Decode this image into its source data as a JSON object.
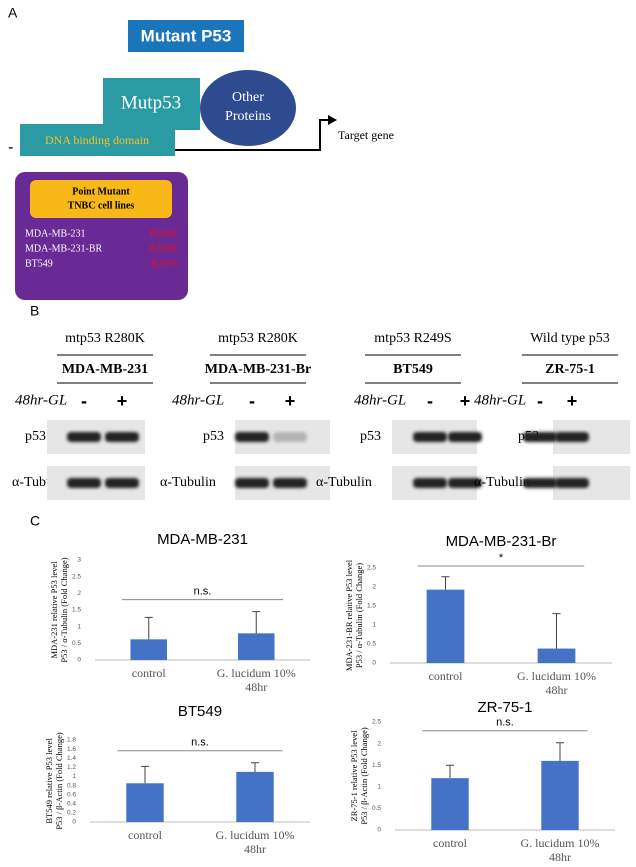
{
  "panel_a": {
    "label": "A",
    "title": "Mutant P53",
    "protein": "Mutp53",
    "domain": "DNA binding domain",
    "partner": [
      "Other",
      "Proteins"
    ],
    "target": "Target gene",
    "start": "-",
    "box_title": [
      "Point Mutant",
      "TNBC cell lines"
    ],
    "cell_lines": [
      {
        "name": "MDA-MB-231",
        "mutation": "R280K"
      },
      {
        "name": "MDA-MB-231-BR",
        "mutation": "R280K"
      },
      {
        "name": "BT549",
        "mutation": "R249S"
      }
    ]
  },
  "panel_b": {
    "label": "B",
    "treatment": "48hr-GL",
    "minus": "-",
    "plus": "+",
    "rows": [
      "p53",
      "α-Tubulin"
    ],
    "columns": [
      {
        "mutation": "mtp53 R280K",
        "cell_line": "MDA-MB-231"
      },
      {
        "mutation": "mtp53 R280K",
        "cell_line": "MDA-MB-231-Br"
      },
      {
        "mutation": "mtp53 R249S",
        "cell_line": "BT549"
      },
      {
        "mutation": "Wild type p53",
        "cell_line": "ZR-75-1"
      }
    ]
  },
  "panel_c": {
    "label": "C"
  },
  "chart_data": [
    {
      "type": "bar",
      "title": "MDA-MB-231",
      "ylabel": [
        "MDA-231 relative P53 level",
        "P53 / α-Tubulin (Fold Change)"
      ],
      "categories": [
        "control",
        "G. lucidum 10% 48hr"
      ],
      "values": [
        0.62,
        0.8
      ],
      "errors": [
        0.66,
        0.65
      ],
      "color": "#4472c4",
      "ylim": [
        0,
        3
      ],
      "yticks": [
        0,
        0.5,
        1,
        1.5,
        2,
        2.5,
        3
      ],
      "annotation": "n.s."
    },
    {
      "type": "bar",
      "title": "MDA-MB-231-Br",
      "ylabel": [
        "MDA-231-BR relative P53 level",
        "P53 / α-Tubulin (Fold Change)"
      ],
      "categories": [
        "control",
        "G. lucidum 10% 48hr"
      ],
      "values": [
        1.93,
        0.38
      ],
      "errors": [
        0.34,
        0.92
      ],
      "color": "#4472c4",
      "ylim": [
        0,
        2.5
      ],
      "yticks": [
        0,
        0.5,
        1,
        1.5,
        2,
        2.5
      ],
      "annotation": "*"
    },
    {
      "type": "bar",
      "title": "BT549",
      "ylabel": [
        "BT549 relative P53 level",
        "P53 / β-Actin (Fold Change)"
      ],
      "categories": [
        "control",
        "G. lucidum 10% 48hr"
      ],
      "values": [
        0.85,
        1.1
      ],
      "errors": [
        0.37,
        0.2
      ],
      "color": "#4472c4",
      "ylim": [
        0,
        1.8
      ],
      "yticks": [
        0,
        0.2,
        0.4,
        0.6,
        0.8,
        1,
        1.2,
        1.4,
        1.6,
        1.8
      ],
      "annotation": "n.s."
    },
    {
      "type": "bar",
      "title": "ZR-75-1",
      "ylabel": [
        "ZR-75-1 relative P53 level",
        "P53 / β-Actin (Fold Change)"
      ],
      "categories": [
        "control",
        "G. lucidum 10% 48hr"
      ],
      "values": [
        1.2,
        1.6
      ],
      "errors": [
        0.3,
        0.42
      ],
      "color": "#4472c4",
      "ylim": [
        0,
        2.5
      ],
      "yticks": [
        0,
        0.5,
        1,
        1.5,
        2,
        2.5
      ],
      "annotation": "n.s."
    }
  ]
}
